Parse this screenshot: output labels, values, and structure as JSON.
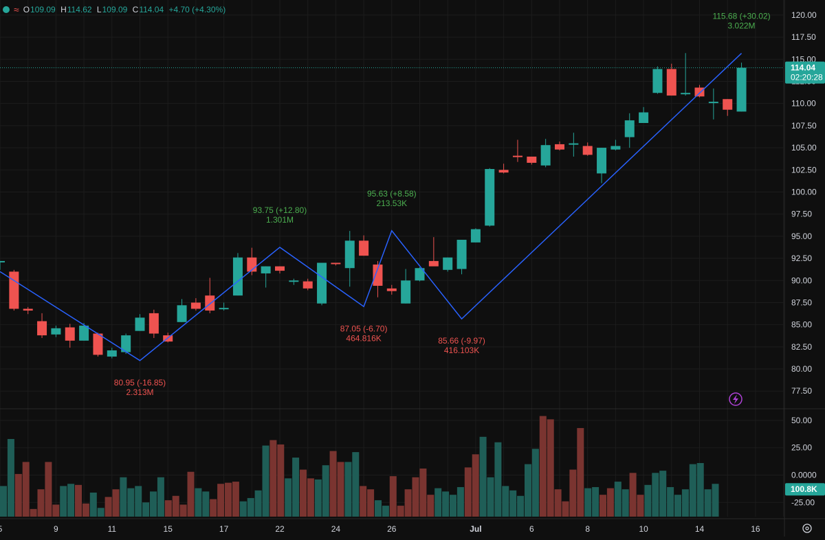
{
  "header": {
    "open_label": "O",
    "open": "109.09",
    "high_label": "H",
    "high": "114.62",
    "low_label": "L",
    "low": "109.09",
    "close_label": "C",
    "close": "114.04",
    "change": "+4.70 (+4.30%)"
  },
  "price_tag": {
    "price": "114.04",
    "countdown": "02:20:28"
  },
  "volume_tag": "100.8K",
  "icons": {
    "settings": "gear-icon",
    "alert": "lightning-icon",
    "status": "status-dot-icon",
    "indicator": "wave-icon"
  },
  "colors": {
    "up": "#26a69a",
    "down": "#ef5350",
    "zigzag": "#2962ff",
    "up_vol": "#1f5e57",
    "down_vol": "#7a3430",
    "background": "#0f0f0f"
  },
  "chart_data": [
    {
      "type": "candlestick",
      "price_axis": {
        "ticks": [
          "120.00",
          "117.50",
          "115.00",
          "112.50",
          "110.00",
          "107.50",
          "105.00",
          "102.50",
          "100.00",
          "97.50",
          "95.00",
          "92.50",
          "90.00",
          "87.50",
          "85.00",
          "82.50",
          "80.00",
          "77.50"
        ],
        "ylim": [
          75.5,
          121.7
        ]
      },
      "x_ticks": [
        "5",
        "9",
        "11",
        "15",
        "17",
        "22",
        "24",
        "26",
        "Jul",
        "6",
        "8",
        "10",
        "14",
        "16"
      ],
      "x_tick_index": [
        0,
        4,
        8,
        12,
        16,
        20,
        24,
        28,
        34,
        38,
        42,
        46,
        50,
        54
      ],
      "candles": [
        {
          "o": 92.2,
          "h": 92.2,
          "l": 91.2,
          "c": 92.2
        },
        {
          "o": 91.0,
          "h": 91.2,
          "l": 86.6,
          "c": 86.8
        },
        {
          "o": 86.8,
          "h": 87.0,
          "l": 86.2,
          "c": 86.6
        },
        {
          "o": 85.4,
          "h": 86.3,
          "l": 83.5,
          "c": 83.8
        },
        {
          "o": 83.9,
          "h": 84.9,
          "l": 83.6,
          "c": 84.6
        },
        {
          "o": 84.7,
          "h": 85.1,
          "l": 82.4,
          "c": 83.2
        },
        {
          "o": 83.2,
          "h": 85.2,
          "l": 83.2,
          "c": 84.9
        },
        {
          "o": 84.0,
          "h": 84.1,
          "l": 81.4,
          "c": 81.6
        },
        {
          "o": 81.4,
          "h": 82.4,
          "l": 81.2,
          "c": 82.1
        },
        {
          "o": 81.9,
          "h": 84.0,
          "l": 81.7,
          "c": 83.8
        },
        {
          "o": 84.3,
          "h": 86.2,
          "l": 84.3,
          "c": 85.8
        },
        {
          "o": 86.3,
          "h": 86.7,
          "l": 83.5,
          "c": 84.0
        },
        {
          "o": 83.8,
          "h": 84.1,
          "l": 83.0,
          "c": 83.1
        },
        {
          "o": 85.3,
          "h": 87.9,
          "l": 85.3,
          "c": 87.2
        },
        {
          "o": 87.5,
          "h": 88.0,
          "l": 86.6,
          "c": 86.8
        },
        {
          "o": 88.3,
          "h": 90.3,
          "l": 86.3,
          "c": 86.6
        },
        {
          "o": 86.8,
          "h": 87.5,
          "l": 86.6,
          "c": 86.9
        },
        {
          "o": 88.3,
          "h": 93.1,
          "l": 88.3,
          "c": 92.6
        },
        {
          "o": 92.6,
          "h": 93.7,
          "l": 90.6,
          "c": 91.0
        },
        {
          "o": 90.8,
          "h": 91.6,
          "l": 89.2,
          "c": 91.6
        },
        {
          "o": 91.6,
          "h": 91.6,
          "l": 90.8,
          "c": 91.1
        },
        {
          "o": 90.0,
          "h": 90.2,
          "l": 89.5,
          "c": 90.0
        },
        {
          "o": 89.9,
          "h": 90.2,
          "l": 88.9,
          "c": 89.1
        },
        {
          "o": 87.4,
          "h": 92.0,
          "l": 87.2,
          "c": 92.0
        },
        {
          "o": 92.0,
          "h": 92.0,
          "l": 91.7,
          "c": 91.9
        },
        {
          "o": 91.4,
          "h": 95.6,
          "l": 89.3,
          "c": 94.5
        },
        {
          "o": 94.5,
          "h": 95.1,
          "l": 92.8,
          "c": 92.8
        },
        {
          "o": 91.8,
          "h": 92.2,
          "l": 88.1,
          "c": 89.4
        },
        {
          "o": 89.1,
          "h": 89.5,
          "l": 88.4,
          "c": 88.8
        },
        {
          "o": 87.4,
          "h": 91.3,
          "l": 87.4,
          "c": 90.0
        },
        {
          "o": 90.0,
          "h": 91.5,
          "l": 89.9,
          "c": 91.4
        },
        {
          "o": 92.2,
          "h": 94.9,
          "l": 91.7,
          "c": 91.6
        },
        {
          "o": 91.2,
          "h": 92.6,
          "l": 91.0,
          "c": 92.6
        },
        {
          "o": 91.3,
          "h": 94.6,
          "l": 90.7,
          "c": 94.6
        },
        {
          "o": 94.3,
          "h": 95.9,
          "l": 94.3,
          "c": 95.8
        },
        {
          "o": 96.2,
          "h": 102.7,
          "l": 96.1,
          "c": 102.6
        },
        {
          "o": 102.5,
          "h": 103.2,
          "l": 102.1,
          "c": 102.2
        },
        {
          "o": 104.1,
          "h": 105.9,
          "l": 103.4,
          "c": 104.0
        },
        {
          "o": 104.0,
          "h": 104.0,
          "l": 103.1,
          "c": 103.3
        },
        {
          "o": 103.0,
          "h": 106.0,
          "l": 102.8,
          "c": 105.3
        },
        {
          "o": 105.4,
          "h": 105.7,
          "l": 104.7,
          "c": 104.8
        },
        {
          "o": 105.5,
          "h": 106.7,
          "l": 104.0,
          "c": 105.5
        },
        {
          "o": 105.2,
          "h": 105.6,
          "l": 104.1,
          "c": 104.2
        },
        {
          "o": 102.1,
          "h": 105.0,
          "l": 101.0,
          "c": 105.0
        },
        {
          "o": 104.8,
          "h": 105.9,
          "l": 104.7,
          "c": 105.2
        },
        {
          "o": 106.2,
          "h": 108.9,
          "l": 105.0,
          "c": 108.1
        },
        {
          "o": 107.8,
          "h": 109.6,
          "l": 107.8,
          "c": 109.0
        },
        {
          "o": 111.2,
          "h": 114.2,
          "l": 111.1,
          "c": 113.9
        },
        {
          "o": 113.9,
          "h": 114.5,
          "l": 110.9,
          "c": 110.9
        },
        {
          "o": 111.1,
          "h": 115.7,
          "l": 110.9,
          "c": 111.2
        },
        {
          "o": 111.8,
          "h": 112.1,
          "l": 110.7,
          "c": 110.8
        },
        {
          "o": 110.2,
          "h": 111.7,
          "l": 108.2,
          "c": 110.2
        },
        {
          "o": 110.5,
          "h": 110.5,
          "l": 108.6,
          "c": 109.3
        },
        {
          "o": 109.09,
          "h": 114.62,
          "l": 109.09,
          "c": 114.04
        }
      ],
      "zigzag": [
        {
          "i": 0,
          "v": 91.0
        },
        {
          "i": 10,
          "v": 80.95
        },
        {
          "i": 20,
          "v": 93.75
        },
        {
          "i": 26,
          "v": 87.05
        },
        {
          "i": 28,
          "v": 95.63
        },
        {
          "i": 33,
          "v": 85.66
        },
        {
          "i": 53,
          "v": 115.68
        }
      ],
      "pivot_labels": [
        {
          "i": 10,
          "v": 80.95,
          "side": "below",
          "dir": "down",
          "line1": "80.95 (-16.85)",
          "line2": "2.313M"
        },
        {
          "i": 20,
          "v": 93.75,
          "side": "above",
          "dir": "up",
          "line1": "93.75 (+12.80)",
          "line2": "1.301M"
        },
        {
          "i": 26,
          "v": 87.05,
          "side": "below",
          "dir": "down",
          "line1": "87.05 (-6.70)",
          "line2": "464.816K"
        },
        {
          "i": 28,
          "v": 95.63,
          "side": "above",
          "dir": "up",
          "line1": "95.63 (+8.58)",
          "line2": "213.53K"
        },
        {
          "i": 33,
          "v": 85.66,
          "side": "below",
          "dir": "down",
          "line1": "85.66 (-9.97)",
          "line2": "416.103K"
        },
        {
          "i": 53,
          "v": 115.68,
          "side": "above",
          "dir": "up",
          "line1": "115.68 (+30.02)",
          "line2": "3.022M"
        }
      ],
      "last_price": 114.04
    },
    {
      "type": "bar",
      "name": "volume panel",
      "axis": {
        "ticks": [
          "50.00",
          "25.00",
          "0.0000",
          "-25.00"
        ],
        "tick_values": [
          50,
          25,
          0,
          -25
        ],
        "ylim": [
          -38,
          60
        ]
      },
      "values": [
        -10,
        33,
        1,
        12,
        -31,
        -13,
        12,
        -27,
        -10,
        -8,
        -9,
        -26,
        -16,
        -30,
        -20,
        -13,
        -2,
        -12,
        -10,
        -25,
        -15,
        -2,
        -23,
        -19,
        -27,
        3,
        -12,
        -15,
        -22,
        -8,
        -7,
        -6,
        -24,
        -21,
        -14,
        27,
        32,
        28,
        -3,
        16,
        5,
        -3,
        -4,
        9,
        22,
        12,
        12,
        21,
        -10,
        -13,
        -23,
        -28,
        -1,
        -28,
        -13,
        -2,
        6,
        -18,
        -12,
        -15,
        -18,
        -11,
        7,
        19,
        35,
        -2,
        30,
        -10,
        -14,
        -19,
        10,
        24,
        54,
        51,
        -13,
        -24,
        5,
        43,
        -12,
        -11,
        -18,
        -12,
        -6,
        -13,
        2,
        -18,
        -9,
        2,
        4,
        -11,
        -18,
        -13,
        10,
        11,
        -13,
        -8
      ],
      "last_value": "100.8K"
    }
  ]
}
